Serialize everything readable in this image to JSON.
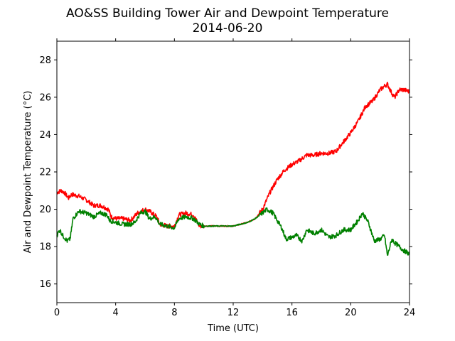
{
  "chart_data": {
    "type": "line",
    "title": "AO&SS Building Tower Air and Dewpoint Temperature",
    "subtitle": "2014-06-20",
    "xlabel": "Time (UTC)",
    "ylabel": "Air and Dewpoint Temperature (°C)",
    "xlim": [
      0,
      24
    ],
    "ylim": [
      15,
      29
    ],
    "xticks": [
      0,
      4,
      8,
      12,
      16,
      20,
      24
    ],
    "xtick_labels": [
      "0",
      "4",
      "8",
      "12",
      "16",
      "20",
      "24"
    ],
    "yticks": [
      16,
      18,
      20,
      22,
      24,
      26,
      28
    ],
    "ytick_labels": [
      "16",
      "18",
      "20",
      "22",
      "24",
      "26",
      "28"
    ],
    "grid": false,
    "series": [
      {
        "color": "#ff0000",
        "x": [
          0,
          0.3,
          0.5,
          0.8,
          1.0,
          1.5,
          2.0,
          2.5,
          3.0,
          3.5,
          3.7,
          4.0,
          4.5,
          5.0,
          5.5,
          6.0,
          6.3,
          6.8,
          7.0,
          7.5,
          8.0,
          8.3,
          8.8,
          9.3,
          9.7,
          10.0,
          10.5,
          11.0,
          11.5,
          12.0,
          12.5,
          13.0,
          13.5,
          14.0,
          14.5,
          15.0,
          15.5,
          16.0,
          16.5,
          17.0,
          17.5,
          18.0,
          18.5,
          19.0,
          19.5,
          20.0,
          20.5,
          21.0,
          21.5,
          22.0,
          22.3,
          22.5,
          22.8,
          23.0,
          23.3,
          23.6,
          24.0
        ],
        "values": [
          20.9,
          21.0,
          20.9,
          20.6,
          20.8,
          20.7,
          20.5,
          20.2,
          20.2,
          20.0,
          19.6,
          19.5,
          19.5,
          19.4,
          19.8,
          20.0,
          19.9,
          19.6,
          19.2,
          19.1,
          19.1,
          19.7,
          19.8,
          19.7,
          19.1,
          19.1,
          19.1,
          19.1,
          19.1,
          19.1,
          19.2,
          19.3,
          19.5,
          20.0,
          20.9,
          21.6,
          22.1,
          22.4,
          22.6,
          22.9,
          22.9,
          23.0,
          23.0,
          23.1,
          23.6,
          24.1,
          24.7,
          25.5,
          25.8,
          26.4,
          26.6,
          26.7,
          26.2,
          26.0,
          26.4,
          26.4,
          26.3
        ]
      },
      {
        "color": "#008000",
        "x": [
          0,
          0.2,
          0.4,
          0.7,
          0.9,
          1.1,
          1.5,
          2.0,
          2.5,
          3.0,
          3.4,
          3.6,
          4.0,
          4.5,
          5.0,
          5.3,
          5.7,
          6.0,
          6.3,
          6.7,
          7.0,
          7.5,
          8.0,
          8.3,
          8.8,
          9.3,
          9.7,
          10.0,
          10.5,
          11.0,
          11.5,
          12.0,
          12.5,
          13.0,
          13.5,
          14.0,
          14.3,
          14.7,
          15.0,
          15.3,
          15.6,
          16.0,
          16.3,
          16.7,
          17.0,
          17.5,
          18.0,
          18.5,
          19.0,
          19.5,
          20.0,
          20.5,
          20.8,
          21.2,
          21.6,
          22.0,
          22.3,
          22.5,
          22.8,
          23.0,
          23.3,
          23.6,
          24.0
        ],
        "values": [
          18.6,
          18.9,
          18.6,
          18.3,
          18.4,
          19.5,
          19.9,
          19.8,
          19.6,
          19.8,
          19.7,
          19.4,
          19.3,
          19.2,
          19.2,
          19.3,
          19.8,
          19.9,
          19.5,
          19.6,
          19.2,
          19.1,
          19.0,
          19.5,
          19.6,
          19.5,
          19.2,
          19.1,
          19.1,
          19.1,
          19.1,
          19.1,
          19.2,
          19.3,
          19.5,
          19.8,
          20.0,
          19.8,
          19.4,
          19.0,
          18.4,
          18.5,
          18.6,
          18.3,
          18.9,
          18.7,
          18.9,
          18.5,
          18.6,
          18.9,
          18.9,
          19.4,
          19.8,
          19.3,
          18.3,
          18.4,
          18.6,
          17.5,
          18.4,
          18.2,
          18.0,
          17.8,
          17.6
        ]
      }
    ]
  }
}
